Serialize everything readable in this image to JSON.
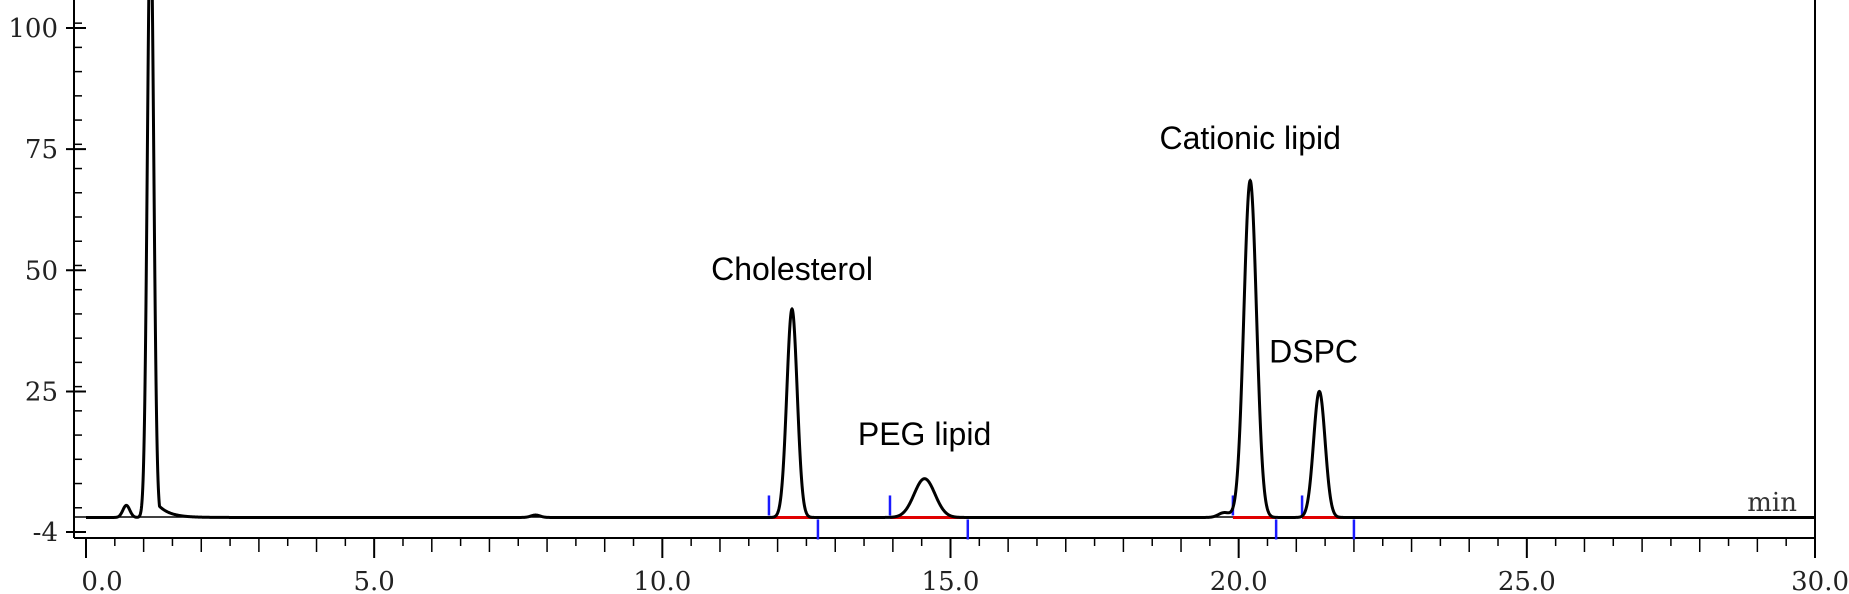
{
  "chart_data": {
    "type": "line",
    "x_unit_label": "min",
    "xlim": [
      0,
      30
    ],
    "ylim": [
      -4,
      105
    ],
    "x_ticks": [
      "0.0",
      "5.0",
      "10.0",
      "15.0",
      "20.0",
      "25.0",
      "30.0"
    ],
    "x_tick_values": [
      0,
      5,
      10,
      15,
      20,
      25,
      30
    ],
    "y_ticks": [
      "100",
      "75",
      "50",
      "25",
      "-4"
    ],
    "y_tick_values": [
      100,
      75,
      50,
      25,
      -4
    ],
    "baseline": -1,
    "series": [
      {
        "color": "#000000",
        "peaks": [
          {
            "rt": 0.7,
            "height": 2.5,
            "sigma": 0.06
          },
          {
            "rt": 1.12,
            "height": 125,
            "sigma": 0.055,
            "tail": 0.2
          },
          {
            "rt": 7.8,
            "height": 0.5,
            "sigma": 0.08
          },
          {
            "rt": 12.25,
            "height": 43,
            "sigma": 0.09
          },
          {
            "rt": 14.55,
            "height": 8,
            "sigma": 0.18
          },
          {
            "rt": 19.75,
            "height": 1,
            "sigma": 0.1
          },
          {
            "rt": 20.2,
            "height": 69.5,
            "sigma": 0.11
          },
          {
            "rt": 21.4,
            "height": 26,
            "sigma": 0.1
          }
        ]
      }
    ],
    "integration_marks": [
      {
        "start": 11.85,
        "end": 12.7
      },
      {
        "start": 13.95,
        "end": 15.3
      },
      {
        "start": 19.9,
        "end": 20.65
      },
      {
        "start": 21.1,
        "end": 22.0
      }
    ],
    "annotations": [
      {
        "text": "Cholesterol",
        "x": 12.25,
        "y": 48
      },
      {
        "text": "PEG lipid",
        "x": 14.55,
        "y": 14
      },
      {
        "text": "Cationic lipid",
        "x": 20.2,
        "y": 75
      },
      {
        "text": "DSPC",
        "x": 21.3,
        "y": 31
      }
    ],
    "colors": {
      "trace": "#000000",
      "axis": "#000000",
      "integration_baseline": "#e00000",
      "integration_tick": "#1a1aff"
    }
  }
}
